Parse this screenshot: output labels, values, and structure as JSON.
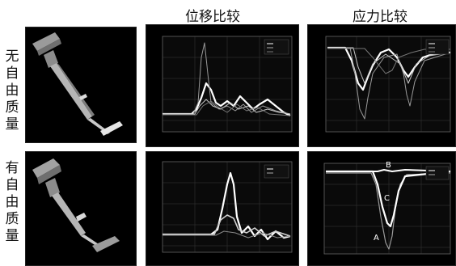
{
  "headers": {
    "displacement": "位移比较",
    "stress": "应力比较"
  },
  "rows": [
    {
      "label_chars": [
        "无",
        "自",
        "由",
        "质",
        "量"
      ]
    },
    {
      "label_chars": [
        "有",
        "自",
        "由",
        "质",
        "量"
      ]
    }
  ],
  "curve_labels": {
    "A": "A",
    "C": "C",
    "B": "B"
  },
  "colors": {
    "background": "#ffffff",
    "panel": "#000000",
    "model": "#b9b9b9",
    "curve": "#ffffff"
  }
}
